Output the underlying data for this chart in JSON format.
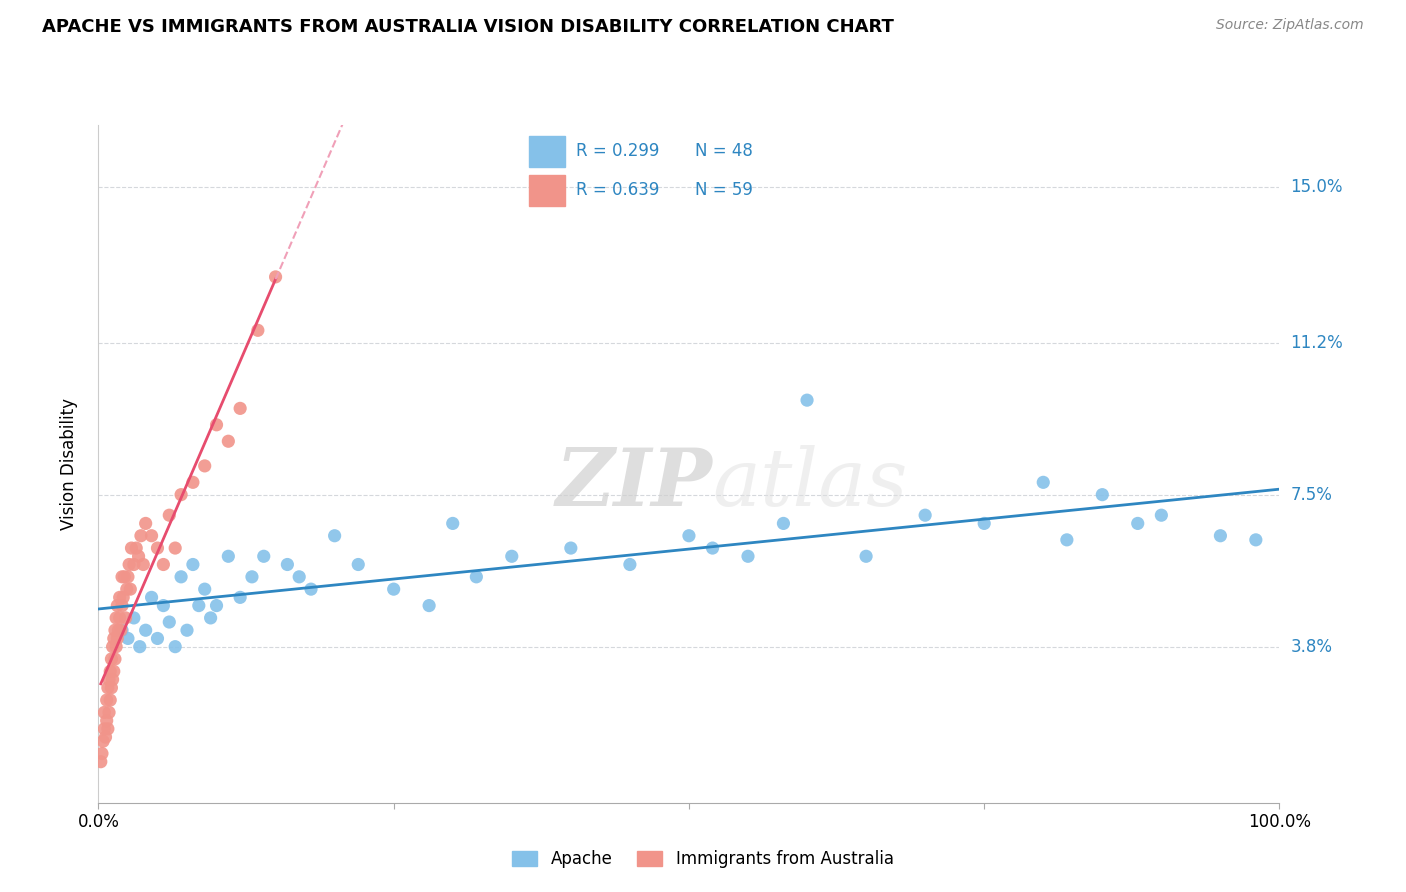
{
  "title": "APACHE VS IMMIGRANTS FROM AUSTRALIA VISION DISABILITY CORRELATION CHART",
  "source": "Source: ZipAtlas.com",
  "ylabel": "Vision Disability",
  "ytick_labels": [
    "3.8%",
    "7.5%",
    "11.2%",
    "15.0%"
  ],
  "ytick_values": [
    0.038,
    0.075,
    0.112,
    0.15
  ],
  "xlim": [
    0.0,
    1.0
  ],
  "ylim": [
    0.0,
    0.165
  ],
  "legend_blue_label": "Apache",
  "legend_pink_label": "Immigrants from Australia",
  "R_blue": "R = 0.299",
  "N_blue": "N = 48",
  "R_pink": "R = 0.639",
  "N_pink": "N = 59",
  "blue_color": "#85c1e9",
  "pink_color": "#f1948a",
  "trendline_blue_color": "#2e86c1",
  "trendline_pink_color": "#e74c6e",
  "trendline_pink_dashed_color": "#f0a0b8",
  "watermark_zip": "ZIP",
  "watermark_atlas": "atlas",
  "grid_color": "#d5d8dc",
  "background_color": "#ffffff",
  "blue_x": [
    0.02,
    0.025,
    0.03,
    0.035,
    0.04,
    0.045,
    0.05,
    0.055,
    0.06,
    0.065,
    0.07,
    0.075,
    0.08,
    0.085,
    0.09,
    0.095,
    0.1,
    0.11,
    0.12,
    0.13,
    0.14,
    0.16,
    0.17,
    0.18,
    0.2,
    0.22,
    0.25,
    0.28,
    0.3,
    0.32,
    0.35,
    0.4,
    0.45,
    0.5,
    0.52,
    0.55,
    0.58,
    0.6,
    0.65,
    0.7,
    0.75,
    0.8,
    0.82,
    0.85,
    0.88,
    0.9,
    0.95,
    0.98
  ],
  "blue_y": [
    0.042,
    0.04,
    0.045,
    0.038,
    0.042,
    0.05,
    0.04,
    0.048,
    0.044,
    0.038,
    0.055,
    0.042,
    0.058,
    0.048,
    0.052,
    0.045,
    0.048,
    0.06,
    0.05,
    0.055,
    0.06,
    0.058,
    0.055,
    0.052,
    0.065,
    0.058,
    0.052,
    0.048,
    0.068,
    0.055,
    0.06,
    0.062,
    0.058,
    0.065,
    0.062,
    0.06,
    0.068,
    0.098,
    0.06,
    0.07,
    0.068,
    0.078,
    0.064,
    0.075,
    0.068,
    0.07,
    0.065,
    0.064
  ],
  "pink_x": [
    0.002,
    0.003,
    0.004,
    0.005,
    0.005,
    0.006,
    0.007,
    0.007,
    0.008,
    0.008,
    0.009,
    0.009,
    0.01,
    0.01,
    0.011,
    0.011,
    0.012,
    0.012,
    0.013,
    0.013,
    0.014,
    0.014,
    0.015,
    0.015,
    0.016,
    0.016,
    0.017,
    0.018,
    0.018,
    0.019,
    0.02,
    0.02,
    0.021,
    0.022,
    0.023,
    0.024,
    0.025,
    0.026,
    0.027,
    0.028,
    0.03,
    0.032,
    0.034,
    0.036,
    0.038,
    0.04,
    0.045,
    0.05,
    0.055,
    0.06,
    0.065,
    0.07,
    0.08,
    0.09,
    0.1,
    0.11,
    0.12,
    0.135,
    0.15
  ],
  "pink_y": [
    0.01,
    0.012,
    0.015,
    0.018,
    0.022,
    0.016,
    0.02,
    0.025,
    0.018,
    0.028,
    0.022,
    0.03,
    0.025,
    0.032,
    0.028,
    0.035,
    0.03,
    0.038,
    0.032,
    0.04,
    0.035,
    0.042,
    0.038,
    0.045,
    0.04,
    0.048,
    0.042,
    0.045,
    0.05,
    0.042,
    0.048,
    0.055,
    0.05,
    0.055,
    0.045,
    0.052,
    0.055,
    0.058,
    0.052,
    0.062,
    0.058,
    0.062,
    0.06,
    0.065,
    0.058,
    0.068,
    0.065,
    0.062,
    0.058,
    0.07,
    0.062,
    0.075,
    0.078,
    0.082,
    0.092,
    0.088,
    0.096,
    0.115,
    0.128
  ]
}
